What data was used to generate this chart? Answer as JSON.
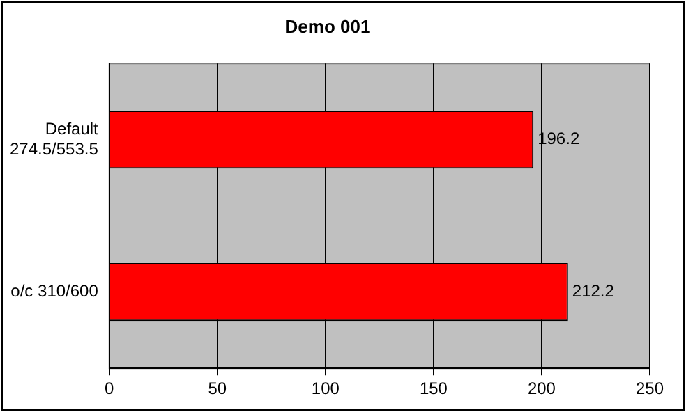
{
  "chart_data": {
    "type": "bar",
    "orientation": "horizontal",
    "title": "Demo 001",
    "categories": [
      "Default\n274.5/553.5",
      "o/c 310/600"
    ],
    "values": [
      196.2,
      212.2
    ],
    "color": "#ff0000",
    "xlim": [
      0,
      250
    ],
    "xticks": [
      0,
      50,
      100,
      150,
      200,
      250
    ],
    "grid": "x",
    "data_labels": true,
    "legend": false
  }
}
